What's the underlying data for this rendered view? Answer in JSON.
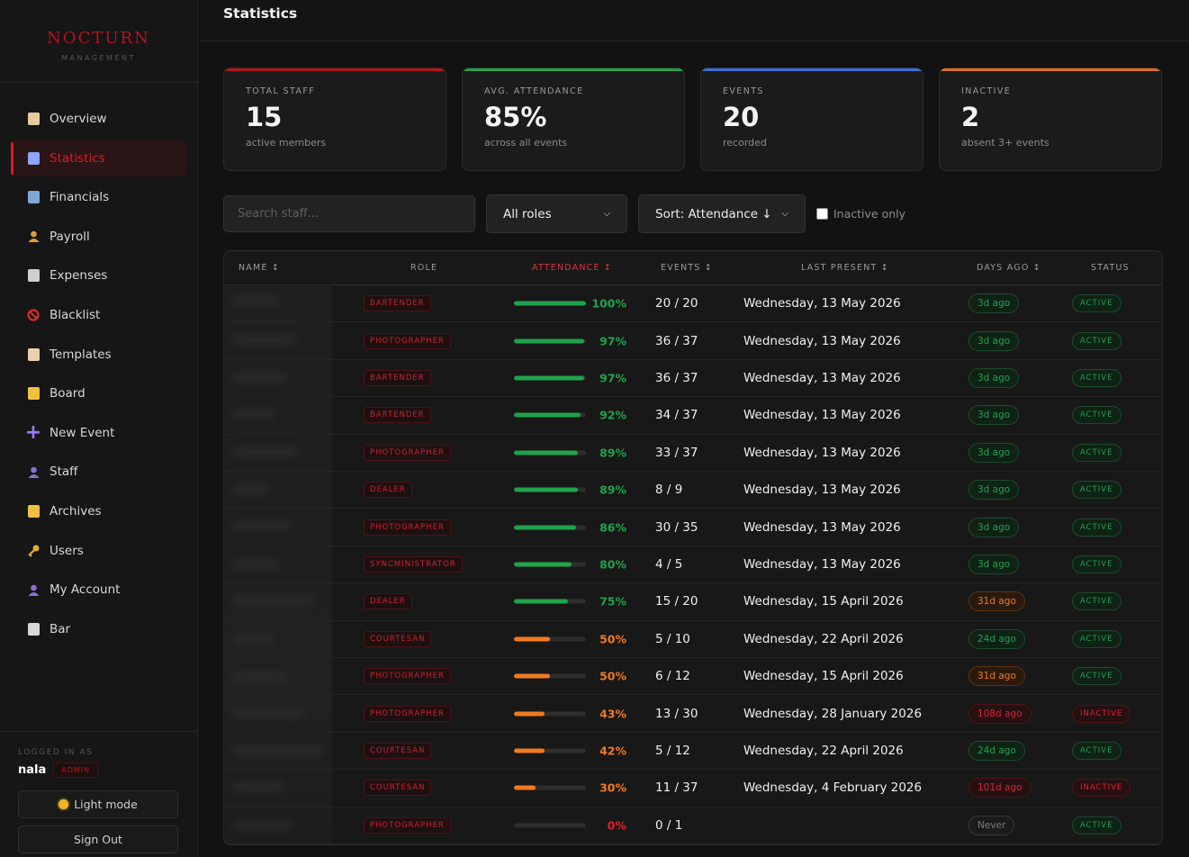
{
  "brand": {
    "name": "NOCTURN",
    "subtitle": "MANAGEMENT"
  },
  "nav": [
    {
      "label": "Overview",
      "icon": "clipboard-icon",
      "color": "#e8c9a0"
    },
    {
      "label": "Statistics",
      "icon": "bar-chart-icon",
      "color": "#8aa6ff",
      "active": true
    },
    {
      "label": "Financials",
      "icon": "chart-up-icon",
      "color": "#7ea8d8"
    },
    {
      "label": "Payroll",
      "icon": "money-bag-icon",
      "color": "#e0a030"
    },
    {
      "label": "Expenses",
      "icon": "receipt-icon",
      "color": "#cfcfcf"
    },
    {
      "label": "Blacklist",
      "icon": "no-entry-icon",
      "color": "#e02a2a"
    },
    {
      "label": "Templates",
      "icon": "page-icon",
      "color": "#e8d0b0"
    },
    {
      "label": "Board",
      "icon": "folder-icon",
      "color": "#f0c040"
    },
    {
      "label": "New Event",
      "icon": "plus-icon",
      "color": "#9a7cff"
    },
    {
      "label": "Staff",
      "icon": "people-icon",
      "color": "#8a70d0"
    },
    {
      "label": "Archives",
      "icon": "folder-icon",
      "color": "#f0c040"
    },
    {
      "label": "Users",
      "icon": "key-icon",
      "color": "#e0b030"
    },
    {
      "label": "My Account",
      "icon": "person-icon",
      "color": "#8a70d0"
    },
    {
      "label": "Bar",
      "icon": "dice-icon",
      "color": "#d8d8d8"
    }
  ],
  "footer": {
    "logged_label": "LOGGED IN AS",
    "user": "nala",
    "role": "ADMIN",
    "light_mode": "Light mode",
    "sign_out": "Sign Out"
  },
  "header": {
    "title": "Statistics"
  },
  "stats": [
    {
      "label": "TOTAL STAFF",
      "value": "15",
      "sub": "active members",
      "accent": "#b3121b"
    },
    {
      "label": "AVG. ATTENDANCE",
      "value": "85%",
      "sub": "across all events",
      "accent": "#1fa34a"
    },
    {
      "label": "EVENTS",
      "value": "20",
      "sub": "recorded",
      "accent": "#3b6fd8"
    },
    {
      "label": "INACTIVE",
      "value": "2",
      "sub": "absent 3+ events",
      "accent": "#e07020"
    }
  ],
  "filters": {
    "search_placeholder": "Search staff...",
    "role_select": "All roles",
    "sort_select": "Sort: Attendance ↓",
    "inactive_label": "Inactive only"
  },
  "table": {
    "headers": [
      "NAME ↕",
      "ROLE",
      "ATTENDANCE ↕",
      "EVENTS ↕",
      "LAST PRESENT ↕",
      "DAYS AGO ↕",
      "STATUS"
    ],
    "rows": [
      {
        "role": "BARTENDER",
        "attendance": 100,
        "pct": "100%",
        "events": "20 / 20",
        "last": "Wednesday, 13 May 2026",
        "days": "3d ago",
        "days_tone": "green",
        "status": "ACTIVE"
      },
      {
        "role": "PHOTOGRAPHER",
        "attendance": 97,
        "pct": "97%",
        "events": "36 / 37",
        "last": "Wednesday, 13 May 2026",
        "days": "3d ago",
        "days_tone": "green",
        "status": "ACTIVE"
      },
      {
        "role": "BARTENDER",
        "attendance": 97,
        "pct": "97%",
        "events": "36 / 37",
        "last": "Wednesday, 13 May 2026",
        "days": "3d ago",
        "days_tone": "green",
        "status": "ACTIVE"
      },
      {
        "role": "BARTENDER",
        "attendance": 92,
        "pct": "92%",
        "events": "34 / 37",
        "last": "Wednesday, 13 May 2026",
        "days": "3d ago",
        "days_tone": "green",
        "status": "ACTIVE"
      },
      {
        "role": "PHOTOGRAPHER",
        "attendance": 89,
        "pct": "89%",
        "events": "33 / 37",
        "last": "Wednesday, 13 May 2026",
        "days": "3d ago",
        "days_tone": "green",
        "status": "ACTIVE"
      },
      {
        "role": "DEALER",
        "attendance": 89,
        "pct": "89%",
        "events": "8 / 9",
        "last": "Wednesday, 13 May 2026",
        "days": "3d ago",
        "days_tone": "green",
        "status": "ACTIVE"
      },
      {
        "role": "PHOTOGRAPHER",
        "attendance": 86,
        "pct": "86%",
        "events": "30 / 35",
        "last": "Wednesday, 13 May 2026",
        "days": "3d ago",
        "days_tone": "green",
        "status": "ACTIVE"
      },
      {
        "role": "SYNCMINISTRATOR",
        "attendance": 80,
        "pct": "80%",
        "events": "4 / 5",
        "last": "Wednesday, 13 May 2026",
        "days": "3d ago",
        "days_tone": "green",
        "status": "ACTIVE"
      },
      {
        "role": "DEALER",
        "attendance": 75,
        "pct": "75%",
        "events": "15 / 20",
        "last": "Wednesday, 15 April 2026",
        "days": "31d ago",
        "days_tone": "orange",
        "status": "ACTIVE"
      },
      {
        "role": "COURTESAN",
        "attendance": 50,
        "pct": "50%",
        "events": "5 / 10",
        "last": "Wednesday, 22 April 2026",
        "days": "24d ago",
        "days_tone": "green",
        "status": "ACTIVE"
      },
      {
        "role": "PHOTOGRAPHER",
        "attendance": 50,
        "pct": "50%",
        "events": "6 / 12",
        "last": "Wednesday, 15 April 2026",
        "days": "31d ago",
        "days_tone": "orange",
        "status": "ACTIVE"
      },
      {
        "role": "PHOTOGRAPHER",
        "attendance": 43,
        "pct": "43%",
        "events": "13 / 30",
        "last": "Wednesday, 28 January 2026",
        "days": "108d ago",
        "days_tone": "red",
        "status": "INACTIVE"
      },
      {
        "role": "COURTESAN",
        "attendance": 42,
        "pct": "42%",
        "events": "5 / 12",
        "last": "Wednesday, 22 April 2026",
        "days": "24d ago",
        "days_tone": "green",
        "status": "ACTIVE"
      },
      {
        "role": "COURTESAN",
        "attendance": 30,
        "pct": "30%",
        "events": "11 / 37",
        "last": "Wednesday, 4 February 2026",
        "days": "101d ago",
        "days_tone": "red",
        "status": "INACTIVE"
      },
      {
        "role": "PHOTOGRAPHER",
        "attendance": 0,
        "pct": "0%",
        "events": "0 / 1",
        "last": "",
        "days": "Never",
        "days_tone": "gray",
        "status": "ACTIVE"
      }
    ]
  },
  "colors": {
    "green": "#1fa34a",
    "orange": "#f07a20",
    "red": "#e0202b",
    "gray": "#7a7a7a",
    "accent": "#d81b26"
  }
}
